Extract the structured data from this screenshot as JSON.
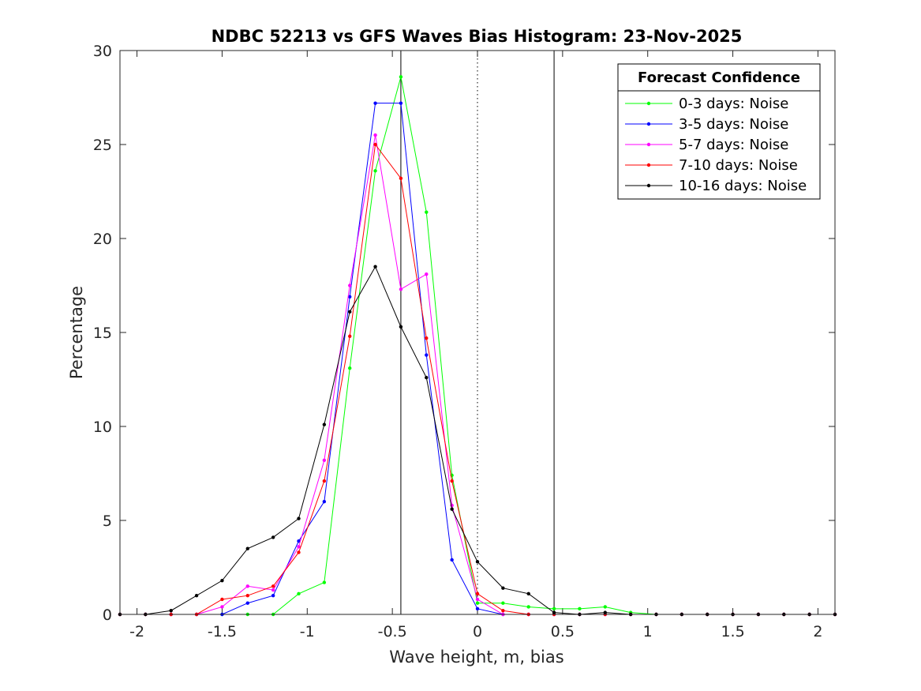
{
  "chart_data": {
    "type": "line",
    "title": "NDBC 52213 vs GFS Waves Bias Histogram: 23-Nov-2025",
    "xlabel": "Wave height, m, bias",
    "ylabel": "Percentage",
    "xlim": [
      -2.1,
      2.1
    ],
    "ylim": [
      0,
      30
    ],
    "xticks": [
      -2,
      -1.5,
      -1,
      -0.5,
      0,
      0.5,
      1,
      1.5,
      2
    ],
    "xtick_labels": [
      "-2",
      "-1.5",
      "-1",
      "-0.5",
      "0",
      "0.5",
      "1",
      "1.5",
      "2"
    ],
    "yticks": [
      0,
      5,
      10,
      15,
      20,
      25,
      30
    ],
    "ytick_labels": [
      "0",
      "5",
      "10",
      "15",
      "20",
      "25",
      "30"
    ],
    "vertical_lines": [
      {
        "x": -0.45,
        "style": "solid"
      },
      {
        "x": 0,
        "style": "dotted"
      },
      {
        "x": 0.45,
        "style": "solid"
      }
    ],
    "legend": {
      "title": "Forecast Confidence",
      "position": "top-right"
    },
    "x": [
      -2.1,
      -1.95,
      -1.8,
      -1.65,
      -1.5,
      -1.35,
      -1.2,
      -1.05,
      -0.9,
      -0.75,
      -0.6,
      -0.45,
      -0.3,
      -0.15,
      0,
      0.15,
      0.3,
      0.45,
      0.6,
      0.75,
      0.9,
      1.05,
      1.2,
      1.35,
      1.5,
      1.65,
      1.8,
      1.95,
      2.1
    ],
    "series": [
      {
        "name": "0-3 days: Noise",
        "color": "#00ff00",
        "values": [
          0,
          0,
          0,
          0,
          0,
          0,
          0,
          1.1,
          1.7,
          13.1,
          23.6,
          28.6,
          21.4,
          7.4,
          0.6,
          0.6,
          0.4,
          0.3,
          0.3,
          0.4,
          0.1,
          0,
          0,
          0,
          0,
          0,
          0,
          0,
          0
        ]
      },
      {
        "name": "3-5 days: Noise",
        "color": "#0000ff",
        "values": [
          0,
          0,
          0,
          0,
          0,
          0.6,
          1.0,
          3.9,
          6.0,
          16.9,
          27.2,
          27.2,
          13.8,
          2.9,
          0.3,
          0,
          0,
          0,
          0,
          0,
          0,
          0,
          0,
          0,
          0,
          0,
          0,
          0,
          0
        ]
      },
      {
        "name": "5-7 days: Noise",
        "color": "#ff00ff",
        "values": [
          0,
          0,
          0,
          0,
          0.4,
          1.5,
          1.3,
          3.6,
          8.2,
          17.5,
          25.5,
          17.3,
          18.1,
          5.8,
          0.8,
          0,
          0,
          0,
          0,
          0,
          0,
          0,
          0,
          0,
          0,
          0,
          0,
          0,
          0
        ]
      },
      {
        "name": "7-10 days: Noise",
        "color": "#ff0000",
        "values": [
          0,
          0,
          0,
          0,
          0.8,
          1.0,
          1.5,
          3.3,
          7.1,
          14.8,
          25.0,
          23.2,
          14.7,
          7.1,
          1.1,
          0.2,
          0,
          0,
          0,
          0,
          0,
          0,
          0,
          0,
          0,
          0,
          0,
          0,
          0
        ]
      },
      {
        "name": "10-16 days: Noise",
        "color": "#000000",
        "values": [
          0,
          0,
          0.2,
          1.0,
          1.8,
          3.5,
          4.1,
          5.1,
          10.1,
          16.1,
          18.5,
          15.3,
          12.6,
          5.6,
          2.8,
          1.4,
          1.1,
          0.1,
          0,
          0.1,
          0,
          0,
          0,
          0,
          0,
          0,
          0,
          0,
          0
        ]
      }
    ]
  }
}
